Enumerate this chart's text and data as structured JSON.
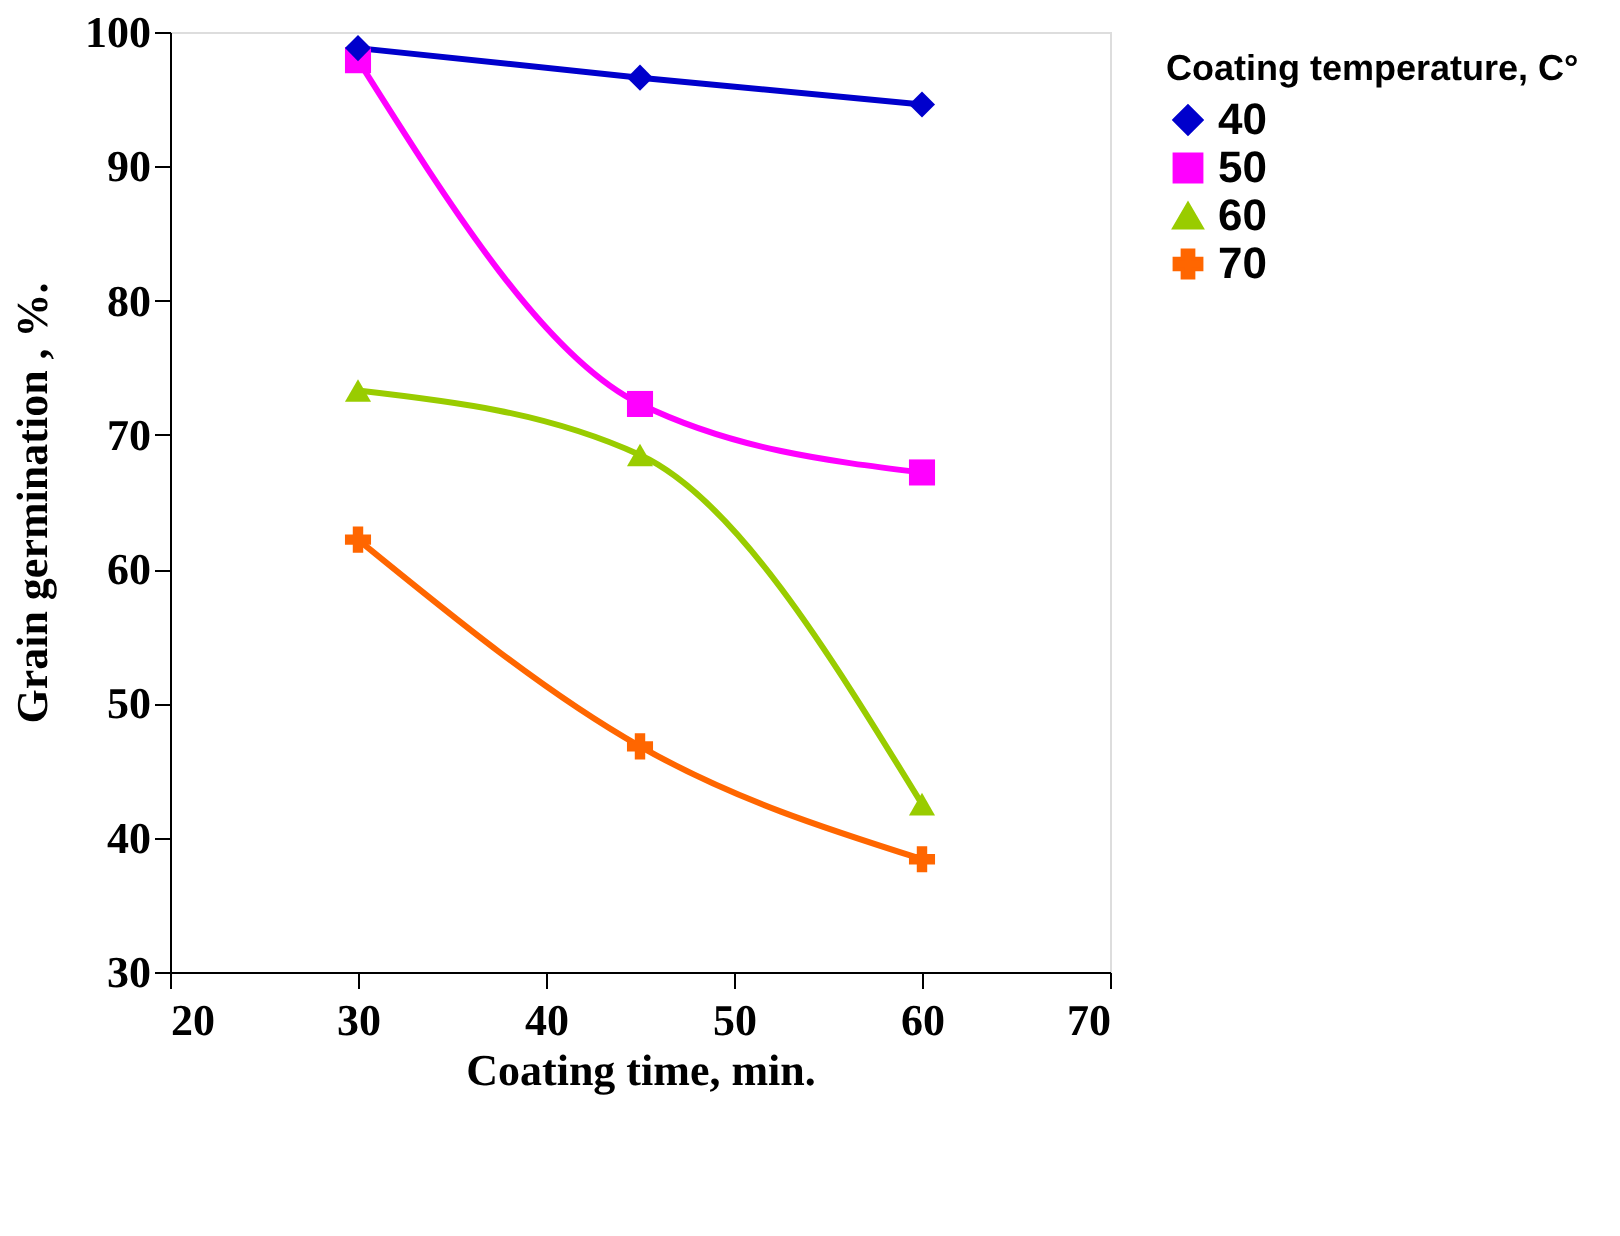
{
  "chart_data": {
    "type": "line",
    "xlabel": "Coating time, min.",
    "ylabel": "Grain germination , %.",
    "legend_title": "Coating temperature, C°",
    "x": [
      30,
      45,
      60
    ],
    "xlim": [
      20,
      70
    ],
    "xticks": [
      20,
      30,
      40,
      50,
      60,
      70
    ],
    "ylim": [
      30,
      100
    ],
    "yticks": [
      30,
      40,
      50,
      60,
      70,
      80,
      90,
      100
    ],
    "grid": false,
    "legend": "right",
    "line_style": "solid",
    "series": [
      {
        "name": "40",
        "color": "#0000cc",
        "marker": "diamond",
        "values": [
          98.8,
          96.6,
          94.6
        ]
      },
      {
        "name": "50",
        "color": "#ff00ff",
        "marker": "square",
        "values": [
          97.9,
          72.3,
          67.2
        ]
      },
      {
        "name": "60",
        "color": "#99cc00",
        "marker": "triangle",
        "values": [
          73.3,
          68.5,
          42.5
        ]
      },
      {
        "name": "70",
        "color": "#ff6600",
        "marker": "cross",
        "values": [
          62.2,
          46.8,
          38.4
        ]
      }
    ]
  }
}
